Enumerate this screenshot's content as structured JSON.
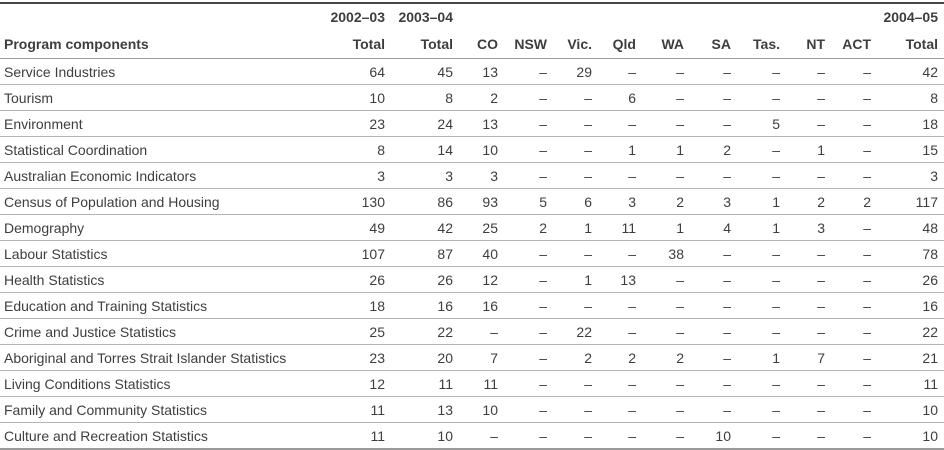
{
  "table": {
    "year_headers": [
      "2002–03",
      "2003–04",
      "2004–05"
    ],
    "columns": [
      "Program components",
      "Total",
      "Total",
      "CO",
      "NSW",
      "Vic.",
      "Qld",
      "WA",
      "SA",
      "Tas.",
      "NT",
      "ACT",
      "Total"
    ],
    "rows": [
      {
        "label": "Service Industries",
        "values": [
          "64",
          "45",
          "13",
          "–",
          "29",
          "–",
          "–",
          "–",
          "–",
          "–",
          "–",
          "42"
        ]
      },
      {
        "label": "Tourism",
        "values": [
          "10",
          "8",
          "2",
          "–",
          "–",
          "6",
          "–",
          "–",
          "–",
          "–",
          "–",
          "8"
        ]
      },
      {
        "label": "Environment",
        "values": [
          "23",
          "24",
          "13",
          "–",
          "–",
          "–",
          "–",
          "–",
          "5",
          "–",
          "–",
          "18"
        ]
      },
      {
        "label": "Statistical Coordination",
        "values": [
          "8",
          "14",
          "10",
          "–",
          "–",
          "1",
          "1",
          "2",
          "–",
          "1",
          "–",
          "15"
        ]
      },
      {
        "label": "Australian Economic Indicators",
        "values": [
          "3",
          "3",
          "3",
          "–",
          "–",
          "–",
          "–",
          "–",
          "–",
          "–",
          "–",
          "3"
        ]
      },
      {
        "label": "Census of Population and Housing",
        "values": [
          "130",
          "86",
          "93",
          "5",
          "6",
          "3",
          "2",
          "3",
          "1",
          "2",
          "2",
          "117"
        ]
      },
      {
        "label": "Demography",
        "values": [
          "49",
          "42",
          "25",
          "2",
          "1",
          "11",
          "1",
          "4",
          "1",
          "3",
          "–",
          "48"
        ]
      },
      {
        "label": "Labour Statistics",
        "values": [
          "107",
          "87",
          "40",
          "–",
          "–",
          "–",
          "38",
          "–",
          "–",
          "–",
          "–",
          "78"
        ]
      },
      {
        "label": "Health Statistics",
        "values": [
          "26",
          "26",
          "12",
          "–",
          "1",
          "13",
          "–",
          "–",
          "–",
          "–",
          "–",
          "26"
        ]
      },
      {
        "label": "Education and Training Statistics",
        "values": [
          "18",
          "16",
          "16",
          "–",
          "–",
          "–",
          "–",
          "–",
          "–",
          "–",
          "–",
          "16"
        ]
      },
      {
        "label": "Crime and Justice Statistics",
        "values": [
          "25",
          "22",
          "–",
          "–",
          "22",
          "–",
          "–",
          "–",
          "–",
          "–",
          "–",
          "22"
        ]
      },
      {
        "label": "Aboriginal and Torres Strait Islander Statistics",
        "values": [
          "23",
          "20",
          "7",
          "–",
          "2",
          "2",
          "2",
          "–",
          "1",
          "7",
          "–",
          "21"
        ]
      },
      {
        "label": "Living Conditions Statistics",
        "values": [
          "12",
          "11",
          "11",
          "–",
          "–",
          "–",
          "–",
          "–",
          "–",
          "–",
          "–",
          "11"
        ]
      },
      {
        "label": "Family and Community Statistics",
        "values": [
          "11",
          "13",
          "10",
          "–",
          "–",
          "–",
          "–",
          "–",
          "–",
          "–",
          "–",
          "10"
        ]
      },
      {
        "label": "Culture and Recreation Statistics",
        "values": [
          "11",
          "10",
          "–",
          "–",
          "–",
          "–",
          "–",
          "10",
          "–",
          "–",
          "–",
          "10"
        ]
      }
    ]
  },
  "colors": {
    "text": "#3e3e3e",
    "top_border": "#474747",
    "header_underline": "#9c9c9c",
    "row_line": "#b3b3b3",
    "bottom_border": "#9a9a9a"
  }
}
